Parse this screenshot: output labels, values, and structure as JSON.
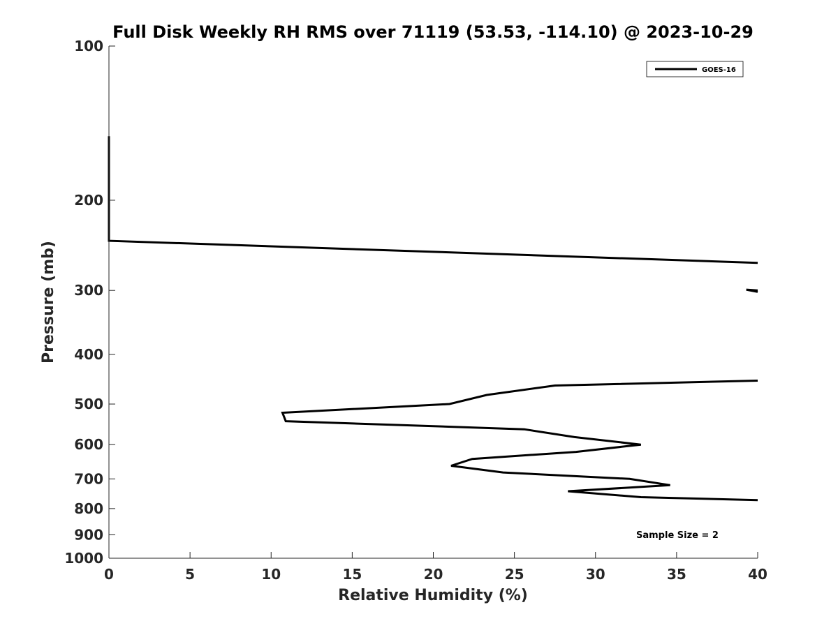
{
  "chart_data": {
    "type": "line",
    "title": "Full Disk Weekly RH RMS over 71119 (53.53, -114.10) @ 2023-10-29",
    "xlabel": "Relative Humidity (%)",
    "ylabel": "Pressure (mb)",
    "xlim": [
      0,
      40
    ],
    "ylim": [
      100,
      1000
    ],
    "yscale": "log",
    "y_reversed": true,
    "grid": false,
    "legend_position": "top-right",
    "x_ticks": [
      "0",
      "5",
      "10",
      "15",
      "20",
      "25",
      "30",
      "35",
      "40"
    ],
    "y_ticks": [
      "100",
      "200",
      "300",
      "400",
      "500",
      "600",
      "700",
      "800",
      "900",
      "1000"
    ],
    "series": [
      {
        "name": "GOES-16",
        "color": "#000000",
        "segments": [
          [
            {
              "x": 0,
              "y": 150
            },
            {
              "x": 0,
              "y": 200
            },
            {
              "x": 0,
              "y": 240
            },
            {
              "x": 40,
              "y": 265
            }
          ],
          [
            {
              "x": 40,
              "y": 300
            },
            {
              "x": 39.3,
              "y": 299
            },
            {
              "x": 40,
              "y": 302
            }
          ],
          [
            {
              "x": 40,
              "y": 450
            },
            {
              "x": 27.5,
              "y": 460
            },
            {
              "x": 23.3,
              "y": 480
            },
            {
              "x": 21,
              "y": 500
            },
            {
              "x": 10.7,
              "y": 520
            },
            {
              "x": 10.9,
              "y": 540
            },
            {
              "x": 25.6,
              "y": 560
            },
            {
              "x": 28.7,
              "y": 580
            },
            {
              "x": 32.8,
              "y": 600
            },
            {
              "x": 28.8,
              "y": 620
            },
            {
              "x": 22.4,
              "y": 640
            },
            {
              "x": 21.1,
              "y": 660
            },
            {
              "x": 24.3,
              "y": 680
            },
            {
              "x": 32.1,
              "y": 700
            },
            {
              "x": 34.6,
              "y": 720
            },
            {
              "x": 28.3,
              "y": 740
            },
            {
              "x": 32.8,
              "y": 760
            },
            {
              "x": 40,
              "y": 770
            }
          ]
        ]
      }
    ],
    "annotation": "Sample Size = 2"
  }
}
